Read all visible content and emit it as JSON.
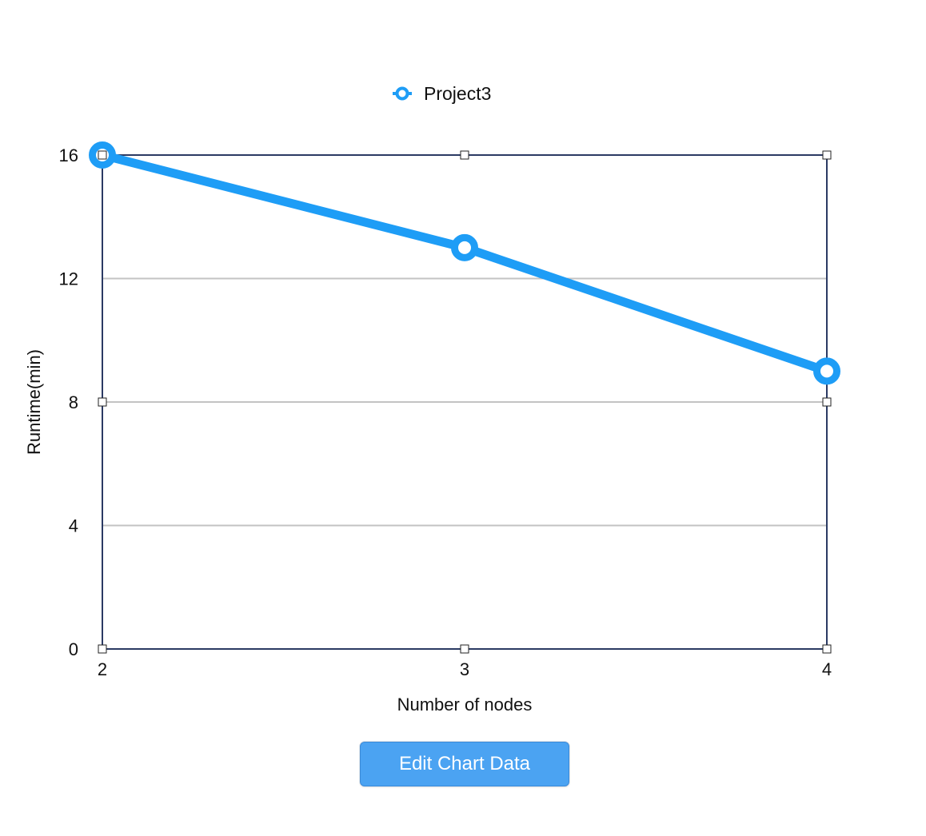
{
  "chart_data": {
    "type": "line",
    "x": [
      2,
      3,
      4
    ],
    "series": [
      {
        "name": "Project3",
        "values": [
          16,
          13,
          9
        ],
        "color": "#1e9df6"
      }
    ],
    "xlabel": "Number of nodes",
    "ylabel": "Runtime(min)",
    "xticks": [
      "2",
      "3",
      "4"
    ],
    "yticks": [
      "0",
      "4",
      "8",
      "12",
      "16"
    ],
    "xlim": [
      2,
      4
    ],
    "ylim": [
      0,
      16
    ],
    "grid": true,
    "legend_position": "top-center"
  },
  "colors": {
    "series": "#1e9df6",
    "plot_border": "#2b3a63",
    "gridline": "#c3c3c3",
    "button": "#4ba3f2"
  },
  "controls": {
    "edit_button_label": "Edit Chart Data"
  }
}
